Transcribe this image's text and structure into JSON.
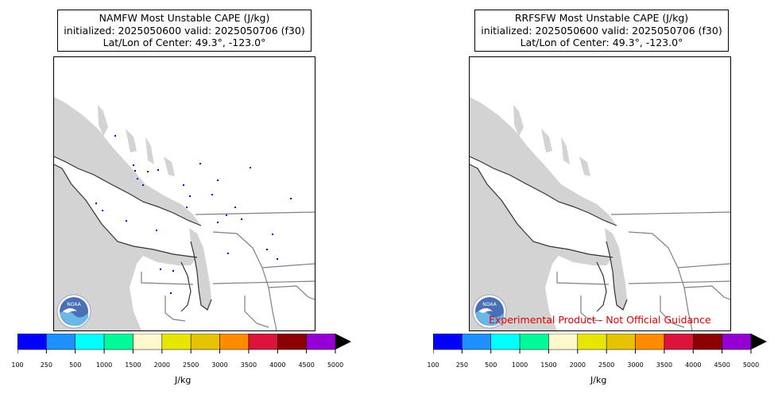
{
  "panels": [
    {
      "title_line1": "NAMFW Most Unstable CAPE (J/kg)",
      "title_line2": "initialized: 2025050600 valid: 2025050706 (f30)",
      "title_line3": "Lat/Lon of Center: 49.3°, -123.0°",
      "logo_text": "NOAA",
      "has_dots": true
    },
    {
      "title_line1": "RRFSFW Most Unstable CAPE (J/kg)",
      "title_line2": "initialized: 2025050600 valid: 2025050706 (f30)",
      "title_line3": "Lat/Lon of Center: 49.3°, -123.0°",
      "logo_text": "NOAA",
      "disclaimer": "Experimental Product - Not Official Guidance",
      "has_dots": false
    }
  ],
  "colorbar": {
    "label": "J/kg",
    "ticks": [
      "100",
      "250",
      "500",
      "1000",
      "1500",
      "2000",
      "2500",
      "3000",
      "3500",
      "4000",
      "4500",
      "5000"
    ],
    "colors": [
      "#0000ff",
      "#1e90ff",
      "#00ffff",
      "#00fa9a",
      "#fffacd",
      "#e6e600",
      "#e6c300",
      "#ff8c00",
      "#dc143c",
      "#8b0000",
      "#9400d3"
    ],
    "extend_color": "#000000"
  },
  "colors": {
    "ocean": "#d3d3d3",
    "land": "#ffffff",
    "coast": "#333333",
    "border": "#808080",
    "cape_low": "#0000ff"
  }
}
